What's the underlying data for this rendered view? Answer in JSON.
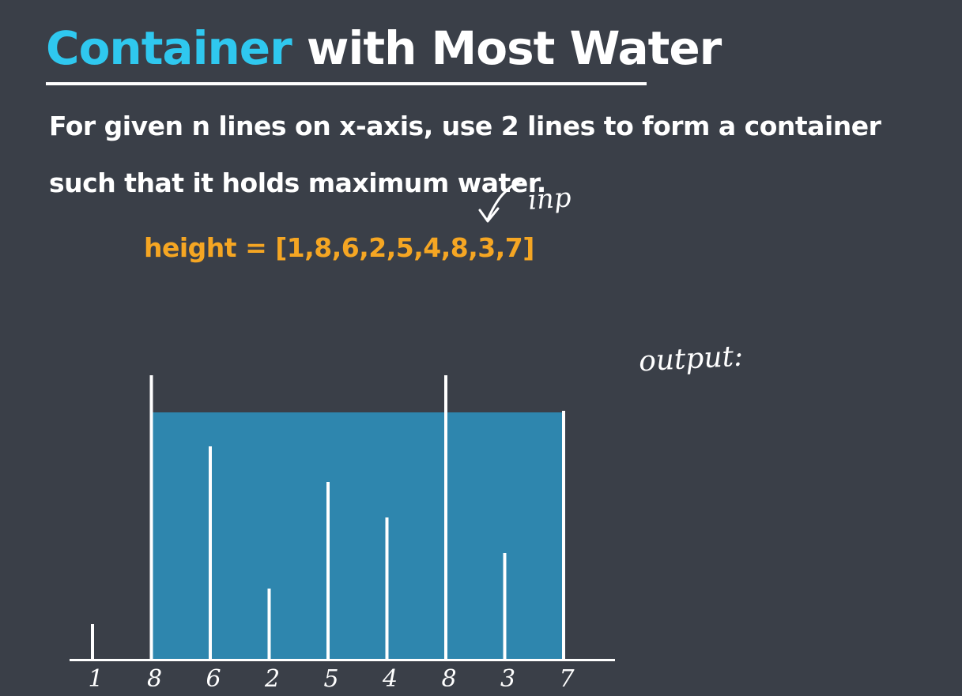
{
  "title": {
    "accent": "Container",
    "rest": " with Most Water"
  },
  "description": "For given n lines on x-axis, use 2 lines to form a container such that it holds maximum water.",
  "height_label": "height = [1,8,6,2,5,4,8,3,7]",
  "annotations": {
    "inp": "inp",
    "output": "output:"
  },
  "colors": {
    "background": "#3a3f48",
    "title_accent": "#2fc8ef",
    "height_label": "#f5a623",
    "water": "#2e86ae",
    "lines": "#ffffff"
  },
  "chart_data": {
    "type": "bar",
    "categories": [
      "1",
      "8",
      "6",
      "2",
      "5",
      "4",
      "8",
      "3",
      "7"
    ],
    "values": [
      1,
      8,
      6,
      2,
      5,
      4,
      8,
      3,
      7
    ],
    "ylim": [
      0,
      9
    ],
    "water": {
      "from_index": 1,
      "to_index": 8,
      "level": 7
    },
    "grid": false
  }
}
